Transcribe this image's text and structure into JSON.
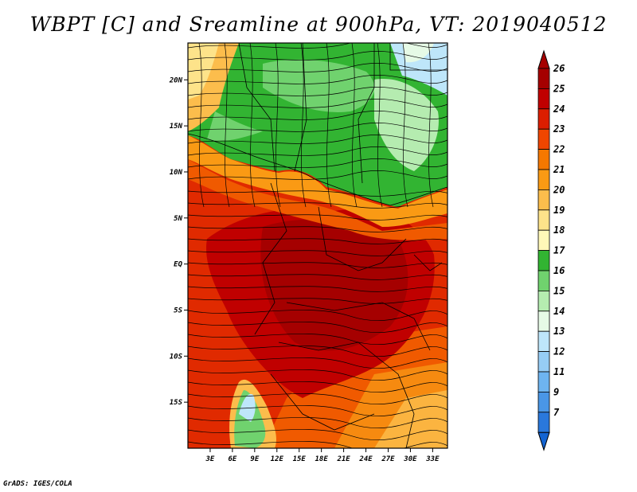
{
  "title": "WBPT [C] and Sreamline at 900hPa, VT: 2019040512",
  "credit": "GrADS: IGES/COLA",
  "map": {
    "lon_range": [
      0,
      35
    ],
    "lat_range": [
      -20,
      24
    ],
    "lat_ticks": [
      {
        "value": 20,
        "label": "20N"
      },
      {
        "value": 15,
        "label": "15N"
      },
      {
        "value": 10,
        "label": "10N"
      },
      {
        "value": 5,
        "label": "5N"
      },
      {
        "value": 0,
        "label": "EQ"
      },
      {
        "value": -5,
        "label": "5S"
      },
      {
        "value": -10,
        "label": "10S"
      },
      {
        "value": -15,
        "label": "15S"
      }
    ],
    "lon_ticks": [
      {
        "value": 3,
        "label": "3E"
      },
      {
        "value": 6,
        "label": "6E"
      },
      {
        "value": 9,
        "label": "9E"
      },
      {
        "value": 12,
        "label": "12E"
      },
      {
        "value": 15,
        "label": "15E"
      },
      {
        "value": 18,
        "label": "18E"
      },
      {
        "value": 21,
        "label": "21E"
      },
      {
        "value": 24,
        "label": "24E"
      },
      {
        "value": 27,
        "label": "27E"
      },
      {
        "value": 30,
        "label": "30E"
      },
      {
        "value": 33,
        "label": "33E"
      }
    ]
  },
  "colorbar": {
    "levels": [
      {
        "label": "26",
        "color": "#a50000"
      },
      {
        "label": "25",
        "color": "#c00000"
      },
      {
        "label": "24",
        "color": "#dc1e00"
      },
      {
        "label": "23",
        "color": "#f04600"
      },
      {
        "label": "22",
        "color": "#f57800"
      },
      {
        "label": "21",
        "color": "#fa9a14"
      },
      {
        "label": "20",
        "color": "#fcbd4c"
      },
      {
        "label": "19",
        "color": "#fde38a"
      },
      {
        "label": "18",
        "color": "#fff8b8"
      },
      {
        "label": "17",
        "color": "#32b432"
      },
      {
        "label": "16",
        "color": "#70d26e"
      },
      {
        "label": "15",
        "color": "#b5ecb0"
      },
      {
        "label": "14",
        "color": "#e6fae6"
      },
      {
        "label": "13",
        "color": "#bee6fa"
      },
      {
        "label": "12",
        "color": "#96cdf5"
      },
      {
        "label": "11",
        "color": "#6eb4f0"
      },
      {
        "label": "9",
        "color": "#4a96e6"
      },
      {
        "label": "7",
        "color": "#2a78dc"
      }
    ],
    "bottom_color": "#1464d2"
  }
}
